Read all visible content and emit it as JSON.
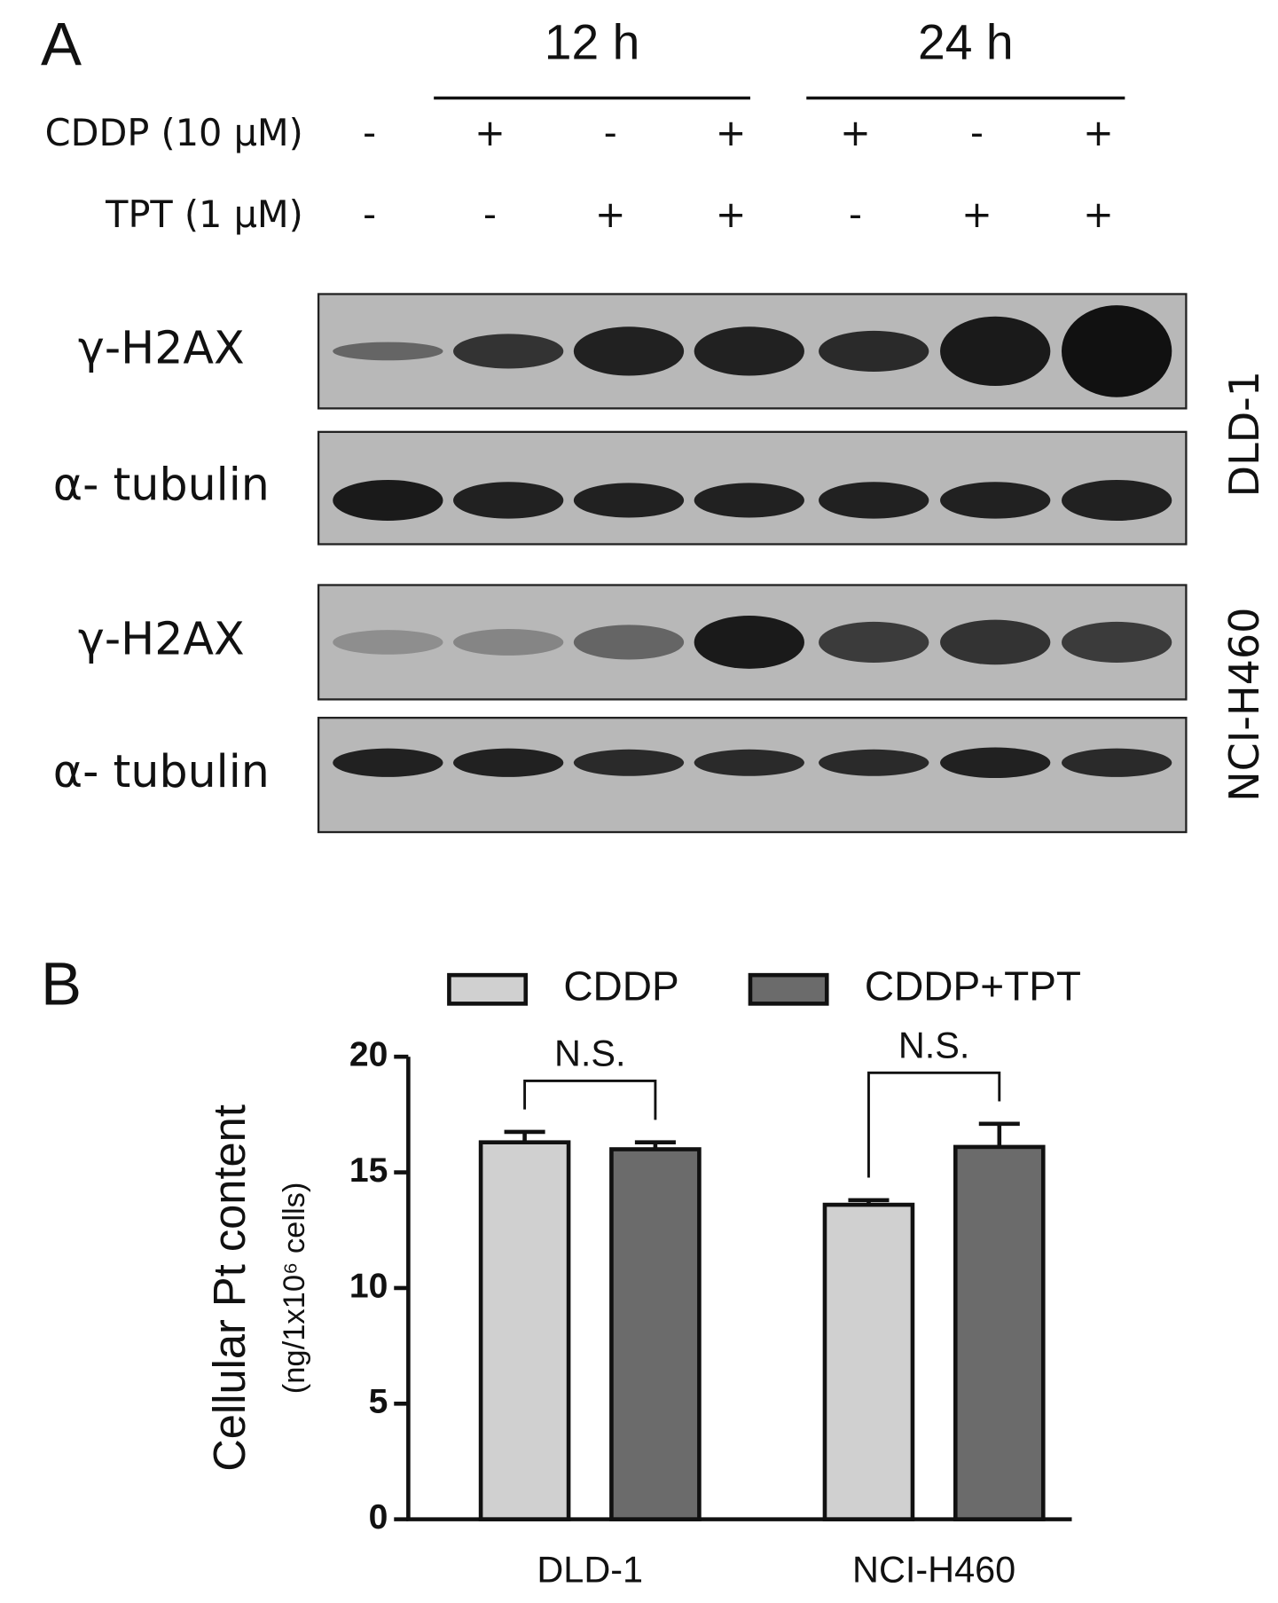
{
  "panel_a": {
    "label": "A",
    "time_points": [
      "12 h",
      "24 h"
    ],
    "treatments": [
      {
        "name": "CDDP (10 μM)",
        "signs": [
          "-",
          "+",
          "-",
          "+",
          "+",
          "-",
          "+"
        ]
      },
      {
        "name": "TPT (1 μM)",
        "signs": [
          "-",
          "-",
          "+",
          "+",
          "-",
          "+",
          "+"
        ]
      }
    ],
    "blot_labels": [
      "γ-H2AX",
      "α- tubulin",
      "γ-H2AX",
      "α- tubulin"
    ],
    "cell_lines": [
      "DLD-1",
      "NCI-H460"
    ]
  },
  "panel_b_label": "B",
  "chart_data": {
    "type": "bar",
    "y_label": "Cellular Pt content",
    "y_label_units": "(ng/1x10⁶ cells)",
    "categories": [
      "DLD-1",
      "NCI-H460"
    ],
    "series": [
      {
        "name": "CDDP",
        "color": "#d0d0d0",
        "values": [
          16.3,
          13.6
        ],
        "errors": [
          0.45,
          0.2
        ]
      },
      {
        "name": "CDDP+TPT",
        "color": "#6b6b6b",
        "values": [
          16.0,
          16.1
        ],
        "errors": [
          0.3,
          1.0
        ]
      }
    ],
    "annotations": [
      "N.S.",
      "N.S."
    ],
    "ylim": [
      0,
      20
    ],
    "yticks": [
      0,
      5,
      10,
      15,
      20
    ]
  }
}
